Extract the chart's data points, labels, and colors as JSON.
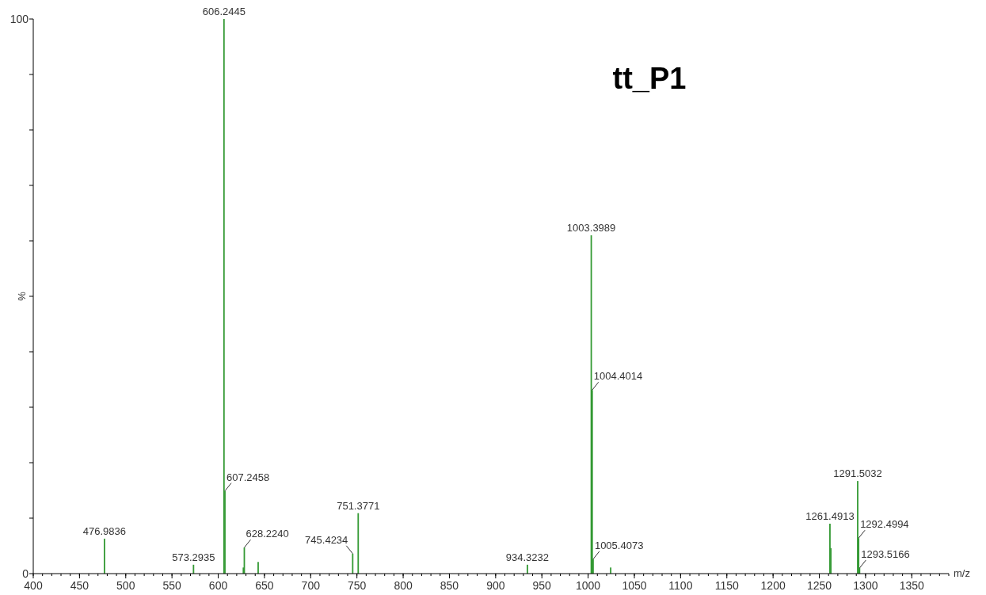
{
  "chart_data": {
    "type": "bar",
    "title": "tt_P1",
    "xlabel": "m/z",
    "ylabel": "%",
    "color": "#339933",
    "x": [
      476.9836,
      573.2935,
      606.2445,
      607.2458,
      627.2,
      628.224,
      643.2,
      745.4234,
      751.3771,
      934.3232,
      1003.3989,
      1004.4014,
      1005.4073,
      1024.4,
      1261.4913,
      1262.5,
      1291.5032,
      1292.4994,
      1293.5166
    ],
    "values": [
      6.3,
      1.6,
      100,
      14.9,
      1.1,
      4.7,
      2.1,
      3.6,
      10.9,
      1.6,
      61,
      33.1,
      2.6,
      1.1,
      9.0,
      4.6,
      16.7,
      6.4,
      1.0
    ],
    "annotations": [
      {
        "text": "476.9836",
        "x": 476.9836,
        "y": 6.3
      },
      {
        "text": "573.2935",
        "x": 573.2935,
        "y": 1.6
      },
      {
        "text": "606.2445",
        "x": 606.2445,
        "y": 100
      },
      {
        "text": "607.2458",
        "x": 607.2458,
        "y": 14.9
      },
      {
        "text": "628.2240",
        "x": 628.224,
        "y": 4.7
      },
      {
        "text": "745.4234",
        "x": 745.4234,
        "y": 3.6
      },
      {
        "text": "751.3771",
        "x": 751.3771,
        "y": 10.9
      },
      {
        "text": "934.3232",
        "x": 934.3232,
        "y": 1.6
      },
      {
        "text": "1003.3989",
        "x": 1003.3989,
        "y": 61
      },
      {
        "text": "1004.4014",
        "x": 1004.4014,
        "y": 33.1
      },
      {
        "text": "1005.4073",
        "x": 1005.4073,
        "y": 2.6
      },
      {
        "text": "1261.4913",
        "x": 1261.4913,
        "y": 9.0
      },
      {
        "text": "1291.5032",
        "x": 1291.5032,
        "y": 16.7
      },
      {
        "text": "1292.4994",
        "x": 1292.4994,
        "y": 6.4
      },
      {
        "text": "1293.5166",
        "x": 1293.5166,
        "y": 1.0
      }
    ],
    "xlim": [
      400,
      1390
    ],
    "xticks": [
      400,
      450,
      500,
      550,
      600,
      650,
      700,
      750,
      800,
      850,
      900,
      950,
      1000,
      1050,
      1100,
      1150,
      1200,
      1250,
      1300,
      1350
    ],
    "ylim": [
      0,
      100
    ],
    "yticks": [
      0,
      {
        "value": 10,
        "label": null
      },
      {
        "value": 20,
        "label": null
      },
      {
        "value": 30,
        "label": null
      },
      {
        "value": 40,
        "label": null
      },
      {
        "value": 50,
        "label": null
      },
      {
        "value": 60,
        "label": null
      },
      {
        "value": 70,
        "label": null
      },
      {
        "value": 80,
        "label": null
      },
      {
        "value": 90,
        "label": null
      },
      100
    ],
    "grid": false
  }
}
